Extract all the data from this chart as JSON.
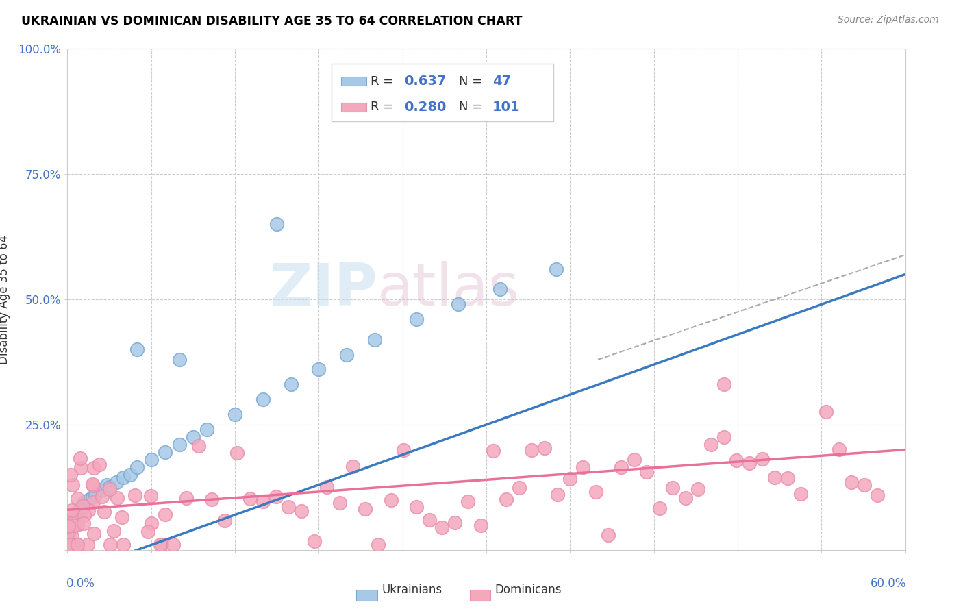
{
  "title": "UKRAINIAN VS DOMINICAN DISABILITY AGE 35 TO 64 CORRELATION CHART",
  "source": "Source: ZipAtlas.com",
  "ylabel": "Disability Age 35 to 64",
  "xlim": [
    0.0,
    0.6
  ],
  "ylim": [
    0.0,
    1.0
  ],
  "blue_color": "#a8c8e8",
  "pink_color": "#f4a8bc",
  "blue_line_color": "#3a7abf",
  "pink_line_color": "#e8709a",
  "blue_edge_color": "#7aaad0",
  "pink_edge_color": "#e890b0",
  "watermark_zip": "ZIP",
  "watermark_atlas": "atlas",
  "legend_items": [
    {
      "color": "#a8c8e8",
      "edge": "#7aaad0",
      "r": "0.637",
      "n": "47"
    },
    {
      "color": "#f4a8bc",
      "edge": "#e890b0",
      "r": "0.280",
      "n": "101"
    }
  ]
}
